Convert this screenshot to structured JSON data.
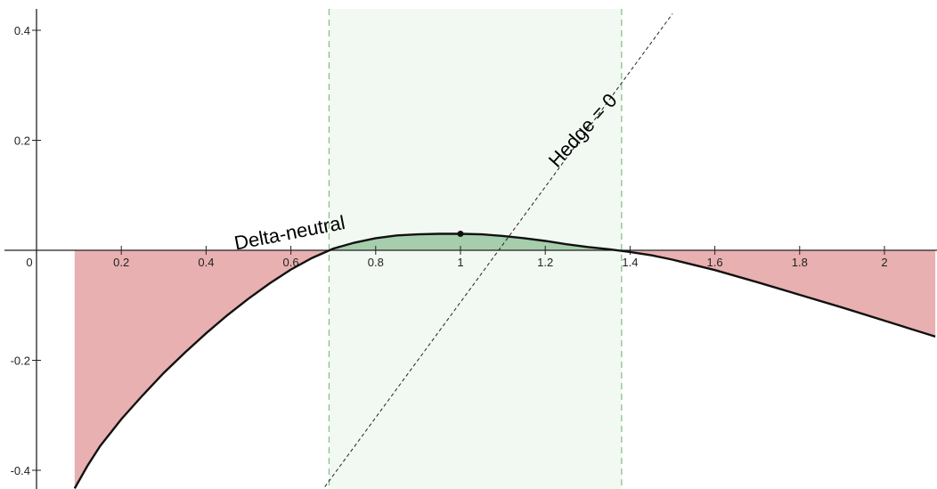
{
  "chart_data": {
    "type": "line",
    "title": "",
    "xlabel": "",
    "ylabel": "",
    "xlim": [
      0,
      2.1
    ],
    "ylim": [
      -0.43,
      0.43
    ],
    "grid": false,
    "x_ticks": [
      {
        "value": 0,
        "label": "0"
      },
      {
        "value": 0.2,
        "label": "0.2"
      },
      {
        "value": 0.4,
        "label": "0.4"
      },
      {
        "value": 0.6,
        "label": "0.6"
      },
      {
        "value": 0.8,
        "label": "0.8"
      },
      {
        "value": 1,
        "label": "1"
      },
      {
        "value": 1.2,
        "label": "1.2"
      },
      {
        "value": 1.4,
        "label": "1.4"
      },
      {
        "value": 1.6,
        "label": "1.6"
      },
      {
        "value": 1.8,
        "label": "1.8"
      },
      {
        "value": 2,
        "label": "2"
      }
    ],
    "y_ticks": [
      {
        "value": 0.4,
        "label": "0.4"
      },
      {
        "value": 0.2,
        "label": "0.2"
      },
      {
        "value": -0.2,
        "label": "-0.2"
      },
      {
        "value": -0.4,
        "label": "-0.4"
      }
    ],
    "series": [
      {
        "role": "curve",
        "x": [
          0.09,
          0.12,
          0.15,
          0.2,
          0.25,
          0.3,
          0.35,
          0.4,
          0.45,
          0.5,
          0.55,
          0.6,
          0.65,
          0.7,
          0.75,
          0.8,
          0.85,
          0.9,
          0.95,
          1.0,
          1.05,
          1.1,
          1.15,
          1.2,
          1.25,
          1.3,
          1.35,
          1.4,
          1.45,
          1.5,
          1.6,
          1.7,
          1.8,
          1.9,
          2.0,
          2.1,
          2.12
        ],
        "y": [
          -0.433,
          -0.392,
          -0.356,
          -0.307,
          -0.264,
          -0.223,
          -0.186,
          -0.151,
          -0.118,
          -0.088,
          -0.06,
          -0.035,
          -0.014,
          0.003,
          0.014,
          0.022,
          0.027,
          0.029,
          0.03,
          0.03,
          0.029,
          0.026,
          0.022,
          0.017,
          0.011,
          0.006,
          0.002,
          -0.003,
          -0.009,
          -0.017,
          -0.036,
          -0.058,
          -0.081,
          -0.104,
          -0.128,
          -0.152,
          -0.157
        ]
      },
      {
        "role": "hedge-line",
        "x": [
          0.68,
          1.5
        ],
        "y": [
          -0.43,
          0.43
        ]
      }
    ],
    "zero_crossings": [
      0.69,
      1.38
    ],
    "point": {
      "x": 1.0,
      "y": 0.03
    },
    "colors": {
      "negative_fill": "#e8b0b0",
      "positive_fill": "#a6ceac",
      "band_fill": "#f2f8f2",
      "band_edge": "#86c386",
      "curve": "#111111"
    },
    "annotations": [
      {
        "text": "Delta-neutral",
        "x": 0.6,
        "y": 0.02,
        "angle": -11
      },
      {
        "text": "Hedge = 0",
        "x": 1.3,
        "y": 0.21,
        "angle": -48
      }
    ]
  }
}
